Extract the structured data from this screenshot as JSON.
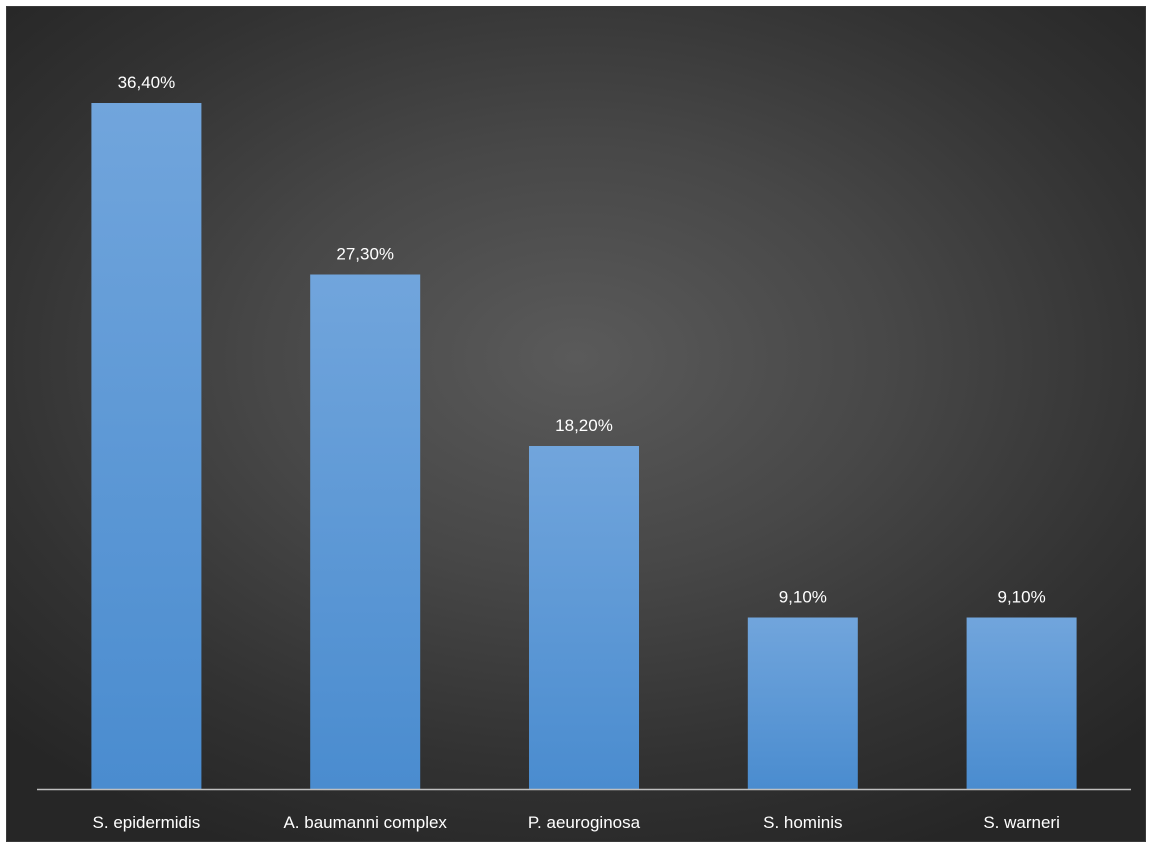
{
  "chart_data": {
    "type": "bar",
    "categories": [
      "S. epidermidis",
      "A. baumanni complex",
      "P. aeuroginosa",
      "S. hominis",
      "S. warneri"
    ],
    "values": [
      36.4,
      27.3,
      18.2,
      9.1,
      9.1
    ],
    "data_labels": [
      "36,40%",
      "27,30%",
      "18,20%",
      "9,10%",
      "9,10%"
    ],
    "title": "",
    "xlabel": "",
    "ylabel": "",
    "ylim": [
      0,
      40
    ],
    "grid": false,
    "legend": "none",
    "colors": {
      "bar_top": "#71a5dc",
      "bar_bottom": "#4a8ccf",
      "axis": "#bfbfbf",
      "background_center": "#5a5a5a",
      "background_edge": "#262626",
      "text": "#ffffff"
    }
  }
}
